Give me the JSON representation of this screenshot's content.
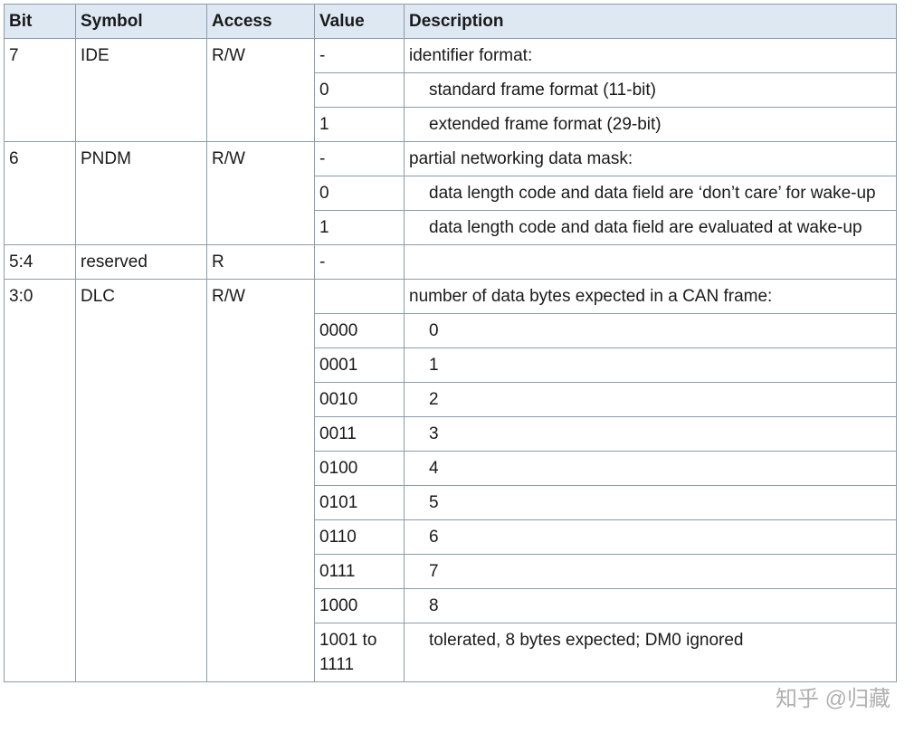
{
  "table": {
    "header": [
      "Bit",
      "Symbol",
      "Access",
      "Value",
      "Description"
    ],
    "groups": [
      {
        "bit": "7",
        "symbol": "IDE",
        "access": "R/W",
        "entries": [
          {
            "value": "-",
            "description": "identifier format:"
          },
          {
            "value": "0",
            "description": "standard frame format (11-bit)"
          },
          {
            "value": "1",
            "description": "extended frame format (29-bit)"
          }
        ]
      },
      {
        "bit": "6",
        "symbol": "PNDM",
        "access": "R/W",
        "entries": [
          {
            "value": "-",
            "description": "partial networking data mask:"
          },
          {
            "value": "0",
            "description": "data length code and data field are ‘don’t care’ for wake-up"
          },
          {
            "value": "1",
            "description": "data length code and data field are evaluated at wake-up"
          }
        ]
      },
      {
        "bit": "5:4",
        "symbol": "reserved",
        "access": "R",
        "entries": [
          {
            "value": "-"
          }
        ]
      },
      {
        "bit": "3:0",
        "symbol": "DLC",
        "access": "R/W",
        "entries": [
          {
            "description": "number of data bytes expected in a CAN frame:"
          },
          {
            "value": "0000",
            "description": "0"
          },
          {
            "value": "0001",
            "description": "1"
          },
          {
            "value": "0010",
            "description": "2"
          },
          {
            "value": "0011",
            "description": "3"
          },
          {
            "value": "0100",
            "description": "4"
          },
          {
            "value": "0101",
            "description": "5"
          },
          {
            "value": "0110",
            "description": "6"
          },
          {
            "value": "0111",
            "description": "7"
          },
          {
            "value": "1000",
            "description": "8"
          },
          {
            "value": "1001 to 1111",
            "description": "tolerated, 8 bytes expected; DM0 ignored"
          }
        ]
      }
    ]
  },
  "watermark": "知乎 @归藏"
}
